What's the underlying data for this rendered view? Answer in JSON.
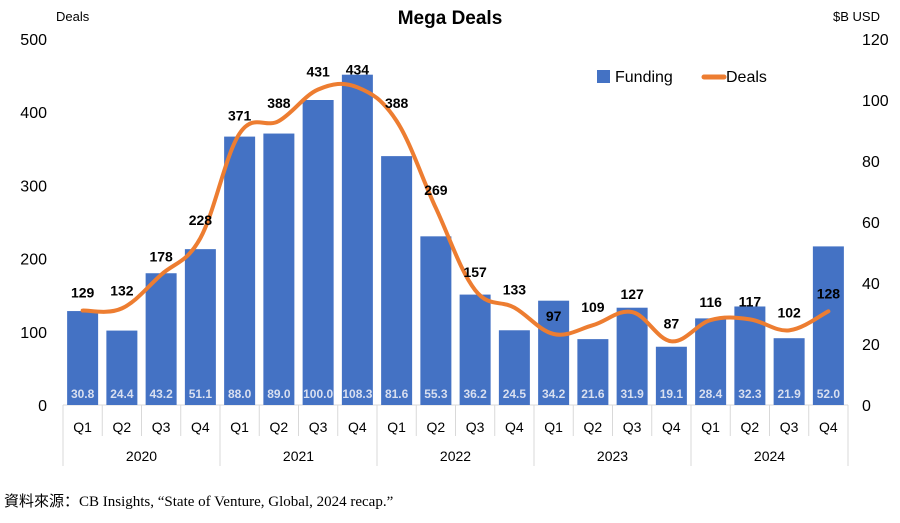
{
  "chart_data": {
    "type": "bar",
    "title": "Mega Deals",
    "left_axis_label": "Deals",
    "right_axis_label": "$B USD",
    "left_ylim": [
      0,
      500
    ],
    "left_ticks": [
      0,
      100,
      200,
      300,
      400,
      500
    ],
    "right_ylim": [
      0,
      120
    ],
    "right_ticks": [
      0,
      20,
      40,
      60,
      80,
      100,
      120
    ],
    "categories": [
      "Q1",
      "Q2",
      "Q3",
      "Q4",
      "Q1",
      "Q2",
      "Q3",
      "Q4",
      "Q1",
      "Q2",
      "Q3",
      "Q4",
      "Q1",
      "Q2",
      "Q3",
      "Q4",
      "Q1",
      "Q2",
      "Q3",
      "Q4"
    ],
    "years": [
      "2020",
      "2021",
      "2022",
      "2023",
      "2024"
    ],
    "series": [
      {
        "name": "Funding",
        "type": "bar",
        "axis": "right",
        "color": "#4472c4",
        "values": [
          30.8,
          24.4,
          43.2,
          51.1,
          88.0,
          89.0,
          100.0,
          108.3,
          81.6,
          55.3,
          36.2,
          24.5,
          34.2,
          21.6,
          31.9,
          19.1,
          28.4,
          32.3,
          21.9,
          52.0
        ],
        "labels": [
          "30.8",
          "24.4",
          "43.2",
          "51.1",
          "88.0",
          "89.0",
          "100.0",
          "108.3",
          "81.6",
          "55.3",
          "36.2",
          "24.5",
          "34.2",
          "21.6",
          "31.9",
          "19.1",
          "28.4",
          "32.3",
          "21.9",
          "52.0"
        ]
      },
      {
        "name": "Deals",
        "type": "line",
        "axis": "left",
        "color": "#ed7d31",
        "values": [
          129,
          132,
          178,
          228,
          371,
          388,
          431,
          434,
          388,
          269,
          157,
          133,
          97,
          109,
          127,
          87,
          116,
          117,
          102,
          128
        ]
      }
    ],
    "legend": "top-right",
    "grid": false
  },
  "source": "資料來源：CB Insights, “State of Venture, Global, 2024 recap.”"
}
